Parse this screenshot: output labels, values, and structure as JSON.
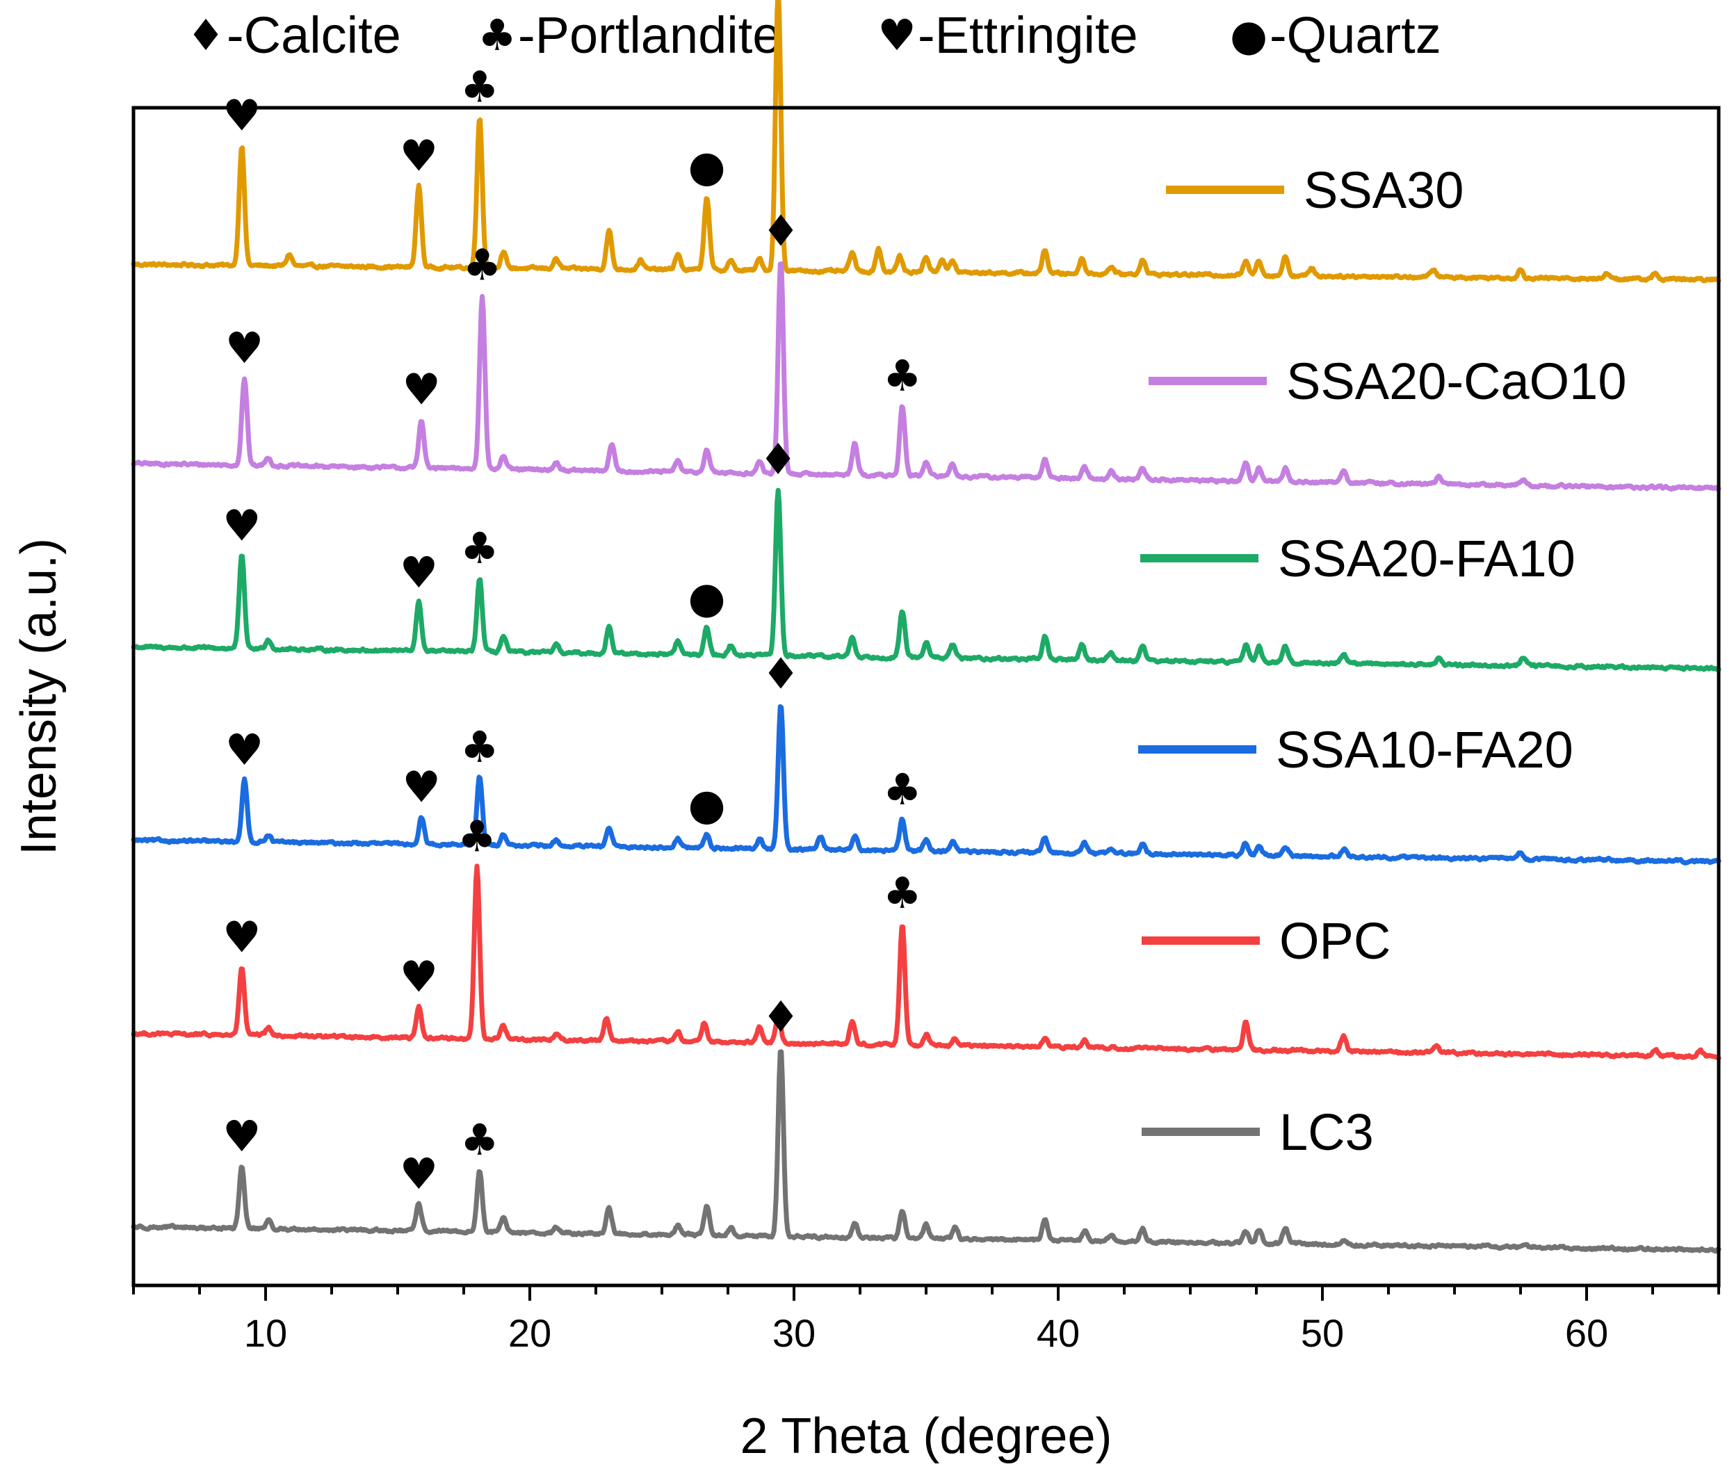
{
  "chart_data": {
    "type": "line",
    "title": "",
    "xlabel": "2 Theta (degree)",
    "ylabel": "Intensity (a.u.)",
    "xlim": [
      5,
      65
    ],
    "xticks": [
      10,
      20,
      30,
      40,
      50,
      60
    ],
    "xtick_labels": [
      "10",
      "20",
      "30",
      "40",
      "50",
      "60"
    ],
    "minor_xticks_step": 2.5,
    "grid": false,
    "y_ticks_shown": false,
    "legend_position": "right, one entry beside each curve",
    "phase_key": [
      {
        "symbol": "♦",
        "label": "-Calcite"
      },
      {
        "symbol": "♣",
        "label": "-Portlandite"
      },
      {
        "symbol": "♥",
        "label": "-Ettringite"
      },
      {
        "symbol": "●",
        "label": "-Quartz"
      }
    ],
    "series": [
      {
        "name": "SSA30",
        "color": "#E09A00",
        "baseline": [
          5.06,
          4.98
        ],
        "peaks": [
          [
            9.1,
            0.62
          ],
          [
            10.9,
            0.06
          ],
          [
            15.8,
            0.42
          ],
          [
            18.1,
            0.78
          ],
          [
            19.0,
            0.08
          ],
          [
            21.0,
            0.05
          ],
          [
            23.0,
            0.2
          ],
          [
            24.2,
            0.05
          ],
          [
            25.6,
            0.08
          ],
          [
            26.7,
            0.38
          ],
          [
            27.6,
            0.05
          ],
          [
            28.7,
            0.06
          ],
          [
            29.4,
            1.45
          ],
          [
            32.2,
            0.1
          ],
          [
            33.2,
            0.12
          ],
          [
            34.0,
            0.08
          ],
          [
            35.0,
            0.08
          ],
          [
            35.6,
            0.07
          ],
          [
            36.0,
            0.06
          ],
          [
            39.5,
            0.12
          ],
          [
            40.9,
            0.08
          ],
          [
            42.0,
            0.04
          ],
          [
            43.2,
            0.08
          ],
          [
            47.1,
            0.07
          ],
          [
            47.6,
            0.08
          ],
          [
            48.6,
            0.1
          ],
          [
            49.6,
            0.04
          ],
          [
            54.2,
            0.04
          ],
          [
            57.5,
            0.04
          ],
          [
            60.8,
            0.03
          ],
          [
            62.6,
            0.03
          ]
        ],
        "markers": [
          {
            "symbol": "♥",
            "x": 9.1
          },
          {
            "symbol": "♥",
            "x": 15.8
          },
          {
            "symbol": "♣",
            "x": 18.1
          },
          {
            "symbol": "●",
            "x": 26.7
          },
          {
            "symbol": "♦",
            "x": 29.4
          }
        ]
      },
      {
        "name": "SSA20-CaO10",
        "color": "#C47FE0",
        "baseline": [
          4.03,
          3.9
        ],
        "peaks": [
          [
            9.2,
            0.45
          ],
          [
            10.1,
            0.04
          ],
          [
            15.9,
            0.25
          ],
          [
            18.2,
            0.9
          ],
          [
            19.0,
            0.07
          ],
          [
            21.0,
            0.04
          ],
          [
            23.1,
            0.14
          ],
          [
            25.6,
            0.06
          ],
          [
            26.7,
            0.12
          ],
          [
            28.7,
            0.06
          ],
          [
            29.5,
            1.1
          ],
          [
            32.3,
            0.17
          ],
          [
            34.1,
            0.36
          ],
          [
            35.0,
            0.07
          ],
          [
            36.0,
            0.07
          ],
          [
            39.5,
            0.1
          ],
          [
            41.0,
            0.06
          ],
          [
            42.0,
            0.04
          ],
          [
            43.2,
            0.06
          ],
          [
            47.1,
            0.1
          ],
          [
            47.6,
            0.07
          ],
          [
            48.6,
            0.07
          ],
          [
            50.8,
            0.07
          ],
          [
            54.4,
            0.04
          ],
          [
            57.6,
            0.03
          ]
        ],
        "markers": [
          {
            "symbol": "♥",
            "x": 9.2
          },
          {
            "symbol": "♥",
            "x": 15.9
          },
          {
            "symbol": "♣",
            "x": 18.2
          },
          {
            "symbol": "♦",
            "x": 29.5
          },
          {
            "symbol": "♣",
            "x": 34.1
          }
        ]
      },
      {
        "name": "SSA20-FA10",
        "color": "#1DAA66",
        "baseline": [
          3.08,
          2.97
        ],
        "peaks": [
          [
            9.1,
            0.48
          ],
          [
            10.1,
            0.05
          ],
          [
            15.8,
            0.25
          ],
          [
            18.1,
            0.38
          ],
          [
            19.0,
            0.08
          ],
          [
            21.0,
            0.04
          ],
          [
            23.0,
            0.14
          ],
          [
            25.6,
            0.07
          ],
          [
            26.7,
            0.14
          ],
          [
            27.6,
            0.05
          ],
          [
            29.4,
            0.86
          ],
          [
            32.2,
            0.1
          ],
          [
            34.1,
            0.24
          ],
          [
            35.0,
            0.08
          ],
          [
            36.0,
            0.07
          ],
          [
            39.5,
            0.12
          ],
          [
            40.9,
            0.08
          ],
          [
            42.0,
            0.04
          ],
          [
            43.2,
            0.08
          ],
          [
            47.1,
            0.09
          ],
          [
            47.6,
            0.08
          ],
          [
            48.6,
            0.08
          ],
          [
            50.8,
            0.05
          ],
          [
            54.4,
            0.03
          ],
          [
            57.6,
            0.04
          ]
        ],
        "markers": [
          {
            "symbol": "♥",
            "x": 9.1
          },
          {
            "symbol": "♥",
            "x": 15.8
          },
          {
            "symbol": "♣",
            "x": 18.1
          },
          {
            "symbol": "●",
            "x": 26.7
          },
          {
            "symbol": "♦",
            "x": 29.4
          }
        ]
      },
      {
        "name": "SSA10-FA20",
        "color": "#1A6CE0",
        "baseline": [
          2.08,
          1.97
        ],
        "peaks": [
          [
            9.2,
            0.32
          ],
          [
            10.1,
            0.04
          ],
          [
            15.9,
            0.14
          ],
          [
            18.1,
            0.35
          ],
          [
            19.0,
            0.06
          ],
          [
            21.0,
            0.03
          ],
          [
            23.0,
            0.1
          ],
          [
            25.6,
            0.05
          ],
          [
            26.7,
            0.07
          ],
          [
            28.7,
            0.05
          ],
          [
            29.5,
            0.75
          ],
          [
            31.0,
            0.07
          ],
          [
            32.3,
            0.08
          ],
          [
            34.1,
            0.16
          ],
          [
            35.0,
            0.06
          ],
          [
            36.0,
            0.05
          ],
          [
            39.5,
            0.07
          ],
          [
            41.0,
            0.05
          ],
          [
            42.0,
            0.03
          ],
          [
            43.2,
            0.05
          ],
          [
            47.1,
            0.06
          ],
          [
            47.6,
            0.05
          ],
          [
            48.6,
            0.05
          ],
          [
            50.8,
            0.04
          ],
          [
            57.5,
            0.03
          ]
        ],
        "markers": [
          {
            "symbol": "♥",
            "x": 9.2
          },
          {
            "symbol": "♥",
            "x": 15.9
          },
          {
            "symbol": "♣",
            "x": 18.1
          },
          {
            "symbol": "●",
            "x": 26.7
          },
          {
            "symbol": "♦",
            "x": 29.5
          },
          {
            "symbol": "♣",
            "x": 34.1
          }
        ]
      },
      {
        "name": "OPC",
        "color": "#F44040",
        "baseline": [
          1.08,
          0.96
        ],
        "peaks": [
          [
            9.1,
            0.35
          ],
          [
            10.1,
            0.04
          ],
          [
            15.8,
            0.16
          ],
          [
            18.0,
            0.89
          ],
          [
            19.0,
            0.07
          ],
          [
            21.0,
            0.03
          ],
          [
            22.9,
            0.12
          ],
          [
            25.6,
            0.05
          ],
          [
            26.6,
            0.1
          ],
          [
            28.7,
            0.08
          ],
          [
            29.4,
            0.13
          ],
          [
            32.2,
            0.12
          ],
          [
            34.1,
            0.63
          ],
          [
            35.0,
            0.06
          ],
          [
            36.1,
            0.04
          ],
          [
            39.5,
            0.04
          ],
          [
            41.0,
            0.05
          ],
          [
            47.1,
            0.14
          ],
          [
            50.8,
            0.08
          ],
          [
            54.3,
            0.04
          ],
          [
            62.6,
            0.03
          ],
          [
            64.3,
            0.03
          ]
        ],
        "markers": [
          {
            "symbol": "♥",
            "x": 9.1
          },
          {
            "symbol": "♥",
            "x": 15.8
          },
          {
            "symbol": "♣",
            "x": 18.0
          },
          {
            "symbol": "♣",
            "x": 34.1
          }
        ]
      },
      {
        "name": "LC3",
        "color": "#737373",
        "baseline": [
          0.08,
          -0.04
        ],
        "peaks": [
          [
            9.1,
            0.32
          ],
          [
            10.1,
            0.04
          ],
          [
            15.8,
            0.14
          ],
          [
            18.1,
            0.32
          ],
          [
            19.0,
            0.07
          ],
          [
            21.0,
            0.03
          ],
          [
            23.0,
            0.14
          ],
          [
            25.6,
            0.05
          ],
          [
            26.7,
            0.15
          ],
          [
            27.6,
            0.04
          ],
          [
            29.5,
            0.98
          ],
          [
            32.3,
            0.08
          ],
          [
            34.1,
            0.14
          ],
          [
            35.0,
            0.07
          ],
          [
            36.1,
            0.06
          ],
          [
            39.5,
            0.11
          ],
          [
            41.0,
            0.05
          ],
          [
            42.0,
            0.03
          ],
          [
            43.2,
            0.07
          ],
          [
            47.1,
            0.06
          ],
          [
            47.6,
            0.07
          ],
          [
            48.6,
            0.08
          ],
          [
            50.8,
            0.03
          ],
          [
            57.6,
            0.02
          ]
        ],
        "markers": [
          {
            "symbol": "♥",
            "x": 9.1
          },
          {
            "symbol": "♥",
            "x": 15.8
          },
          {
            "symbol": "♣",
            "x": 18.1
          },
          {
            "symbol": "♦",
            "x": 29.5
          }
        ]
      }
    ]
  }
}
